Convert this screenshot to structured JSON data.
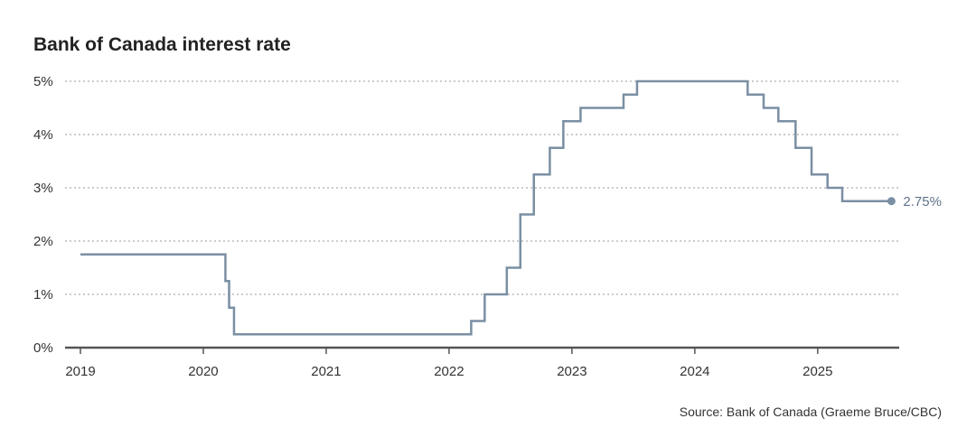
{
  "title": "Bank of Canada interest rate",
  "source": "Source: Bank of Canada (Graeme Bruce/CBC)",
  "chart_data": {
    "type": "line",
    "step": true,
    "title": "Bank of Canada interest rate",
    "xlabel": "",
    "ylabel": "",
    "xlim": [
      2019,
      2025.7
    ],
    "ylim": [
      0,
      5
    ],
    "y_ticks": [
      0,
      1,
      2,
      3,
      4,
      5
    ],
    "y_tick_labels": [
      "0%",
      "1%",
      "2%",
      "3%",
      "4%",
      "5%"
    ],
    "x_ticks": [
      2019,
      2020,
      2021,
      2022,
      2023,
      2024,
      2025
    ],
    "x_tick_labels": [
      "2019",
      "2020",
      "2021",
      "2022",
      "2023",
      "2024",
      "2025"
    ],
    "grid": "horizontal-dotted",
    "line_color": "#7a8fa3",
    "end_label": "2.75%",
    "series": [
      {
        "x": [
          2019.0,
          2020.18,
          2020.21,
          2020.25,
          2022.18,
          2022.29,
          2022.47,
          2022.58,
          2022.69,
          2022.82,
          2022.93,
          2023.07,
          2023.42,
          2023.53,
          2024.43,
          2024.56,
          2024.68,
          2024.82,
          2024.95,
          2025.08,
          2025.2,
          2025.6
        ],
        "y": [
          1.75,
          1.25,
          0.75,
          0.25,
          0.5,
          1.0,
          1.5,
          2.5,
          3.25,
          3.75,
          4.25,
          4.5,
          4.75,
          5.0,
          4.75,
          4.5,
          4.25,
          3.75,
          3.25,
          3.0,
          2.75,
          2.75
        ]
      }
    ]
  }
}
